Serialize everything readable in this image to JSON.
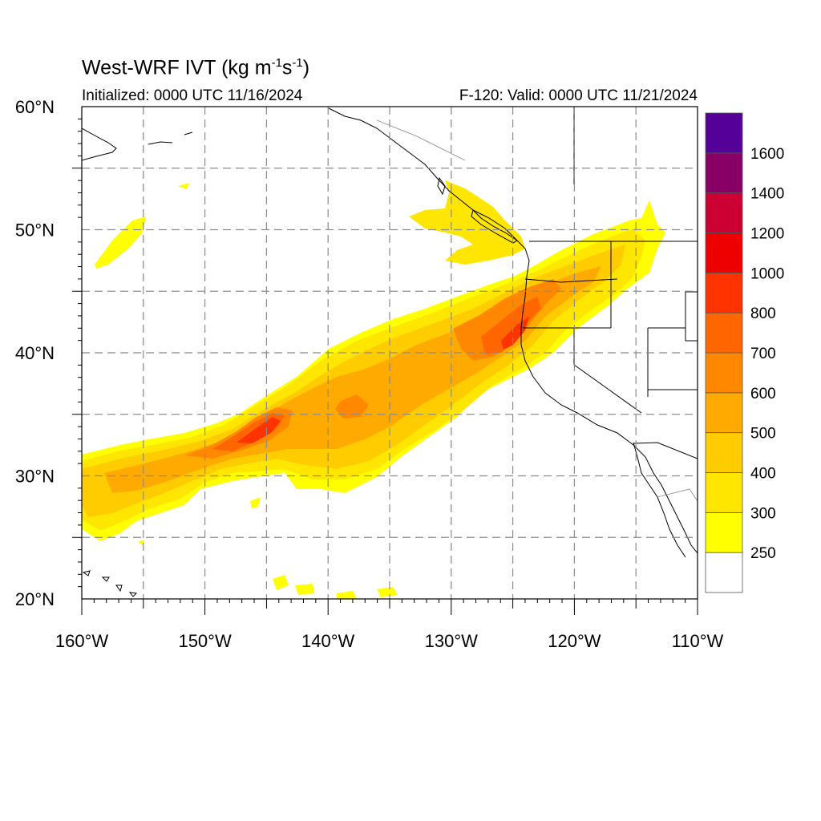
{
  "title": {
    "main": "West-WRF IVT (kg m",
    "exp1": "-1",
    "mid": "s",
    "exp2": "-1",
    "close": ")"
  },
  "init_text": "Initialized: 0000 UTC 11/16/2024",
  "valid_text": "F-120: Valid: 0000 UTC 11/21/2024",
  "map": {
    "lon_range": [
      -160,
      -110
    ],
    "lat_range": [
      20,
      60
    ],
    "lon_tick_labels": [
      "160°W",
      "150°W",
      "140°W",
      "130°W",
      "120°W",
      "110°W"
    ],
    "lat_tick_labels": [
      "20°N",
      "30°N",
      "40°N",
      "50°N",
      "60°N"
    ],
    "gridlines": "dashed every 5 degrees",
    "background_color": "#ffffff",
    "coastline_color": "#000000"
  },
  "colorbar": {
    "labels": [
      "250",
      "300",
      "400",
      "500",
      "600",
      "700",
      "800",
      "1000",
      "1200",
      "1400",
      "1600"
    ],
    "colors": [
      "#ffffff",
      "#ffff00",
      "#ffe600",
      "#ffcc00",
      "#ffaa00",
      "#ff8800",
      "#ff6600",
      "#ff3300",
      "#ee0000",
      "#cc0033",
      "#880066",
      "#550099"
    ]
  },
  "chart_data": {
    "type": "heatmap",
    "variable": "IVT",
    "units": "kg m-1 s-1",
    "levels": [
      250,
      300,
      400,
      500,
      600,
      700,
      800,
      1000,
      1200,
      1400,
      1600
    ],
    "atmospheric_river_axis": [
      {
        "lon": -160,
        "lat": 29.5,
        "ivt": 450
      },
      {
        "lon": -155,
        "lat": 30.5,
        "ivt": 500
      },
      {
        "lon": -150,
        "lat": 31.5,
        "ivt": 600
      },
      {
        "lon": -146,
        "lat": 33.5,
        "ivt": 850
      },
      {
        "lon": -142,
        "lat": 34.5,
        "ivt": 550
      },
      {
        "lon": -138,
        "lat": 35.5,
        "ivt": 600
      },
      {
        "lon": -134,
        "lat": 37.0,
        "ivt": 500
      },
      {
        "lon": -130,
        "lat": 39.0,
        "ivt": 550
      },
      {
        "lon": -126,
        "lat": 41.0,
        "ivt": 700
      },
      {
        "lon": -124.5,
        "lat": 42.0,
        "ivt": 800
      },
      {
        "lon": -122,
        "lat": 44.5,
        "ivt": 500
      },
      {
        "lon": -118,
        "lat": 47.0,
        "ivt": 400
      },
      {
        "lon": -115,
        "lat": 49.5,
        "ivt": 300
      }
    ]
  }
}
